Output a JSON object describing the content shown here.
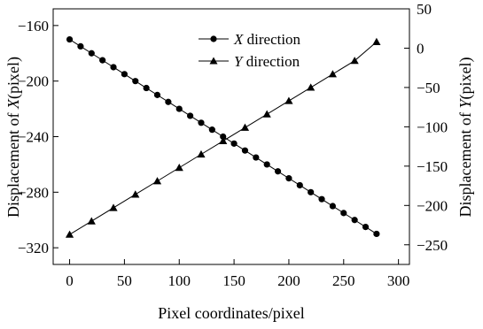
{
  "chart_data": {
    "type": "line",
    "xlabel": "Pixel coordinates/pixel",
    "ylabel_left": "Displacement of X(pixel)",
    "ylabel_right": "Displacement of Y(pixel)",
    "xlim": [
      -15,
      310
    ],
    "ylim_left": [
      -332,
      -148
    ],
    "ylim_right": [
      -275,
      50
    ],
    "x_ticks": [
      0,
      50,
      100,
      150,
      200,
      250,
      300
    ],
    "y_left_ticks": [
      -320,
      -280,
      -240,
      -200,
      -160
    ],
    "y_right_ticks": [
      -250,
      -200,
      -150,
      -100,
      -50,
      0,
      50
    ],
    "legend_position": "top-center",
    "series": [
      {
        "name": "X direction",
        "axis": "left",
        "marker": "circle",
        "x": [
          0,
          10,
          20,
          30,
          40,
          50,
          60,
          70,
          80,
          90,
          100,
          110,
          120,
          130,
          140,
          150,
          160,
          170,
          180,
          190,
          200,
          210,
          220,
          230,
          240,
          250,
          260,
          270,
          280
        ],
        "y": [
          -170,
          -175,
          -180,
          -185,
          -190,
          -195,
          -200,
          -205,
          -210,
          -215,
          -220,
          -225,
          -230,
          -235,
          -240,
          -245,
          -250,
          -255,
          -260,
          -265,
          -270,
          -275,
          -280,
          -285,
          -290,
          -295,
          -300,
          -305,
          -310
        ]
      },
      {
        "name": "Y direction",
        "axis": "right",
        "marker": "triangle",
        "x": [
          0,
          20,
          40,
          60,
          80,
          100,
          120,
          140,
          160,
          180,
          200,
          220,
          240,
          260,
          280
        ],
        "y": [
          -237,
          -220,
          -203,
          -186,
          -169,
          -152,
          -135,
          -118,
          -101,
          -84,
          -67,
          -50,
          -33,
          -16,
          8
        ]
      }
    ]
  }
}
